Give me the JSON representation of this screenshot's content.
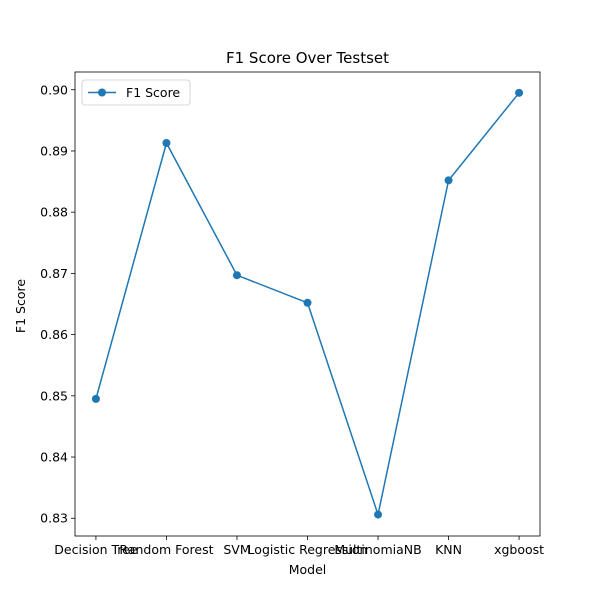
{
  "chart_data": {
    "type": "line",
    "title": "F1 Score Over Testset",
    "xlabel": "Model",
    "ylabel": "F1 Score",
    "categories": [
      "Decision Tree",
      "Random Forest",
      "SVM",
      "Logistic Regression",
      "MultinomiaNB",
      "KNN",
      "xgboost"
    ],
    "series": [
      {
        "name": "F1 Score",
        "color": "#1f77b4",
        "values": [
          0.8495,
          0.8913,
          0.8697,
          0.8652,
          0.8306,
          0.8852,
          0.8995
        ]
      }
    ],
    "ylim": [
      0.8271,
      0.9029
    ],
    "yticks": [
      0.83,
      0.84,
      0.85,
      0.86,
      0.87,
      0.88,
      0.89,
      0.9
    ],
    "ytick_labels": [
      "0.83",
      "0.84",
      "0.85",
      "0.86",
      "0.87",
      "0.88",
      "0.89",
      "0.90"
    ],
    "grid": false,
    "legend_position": "top-left"
  }
}
